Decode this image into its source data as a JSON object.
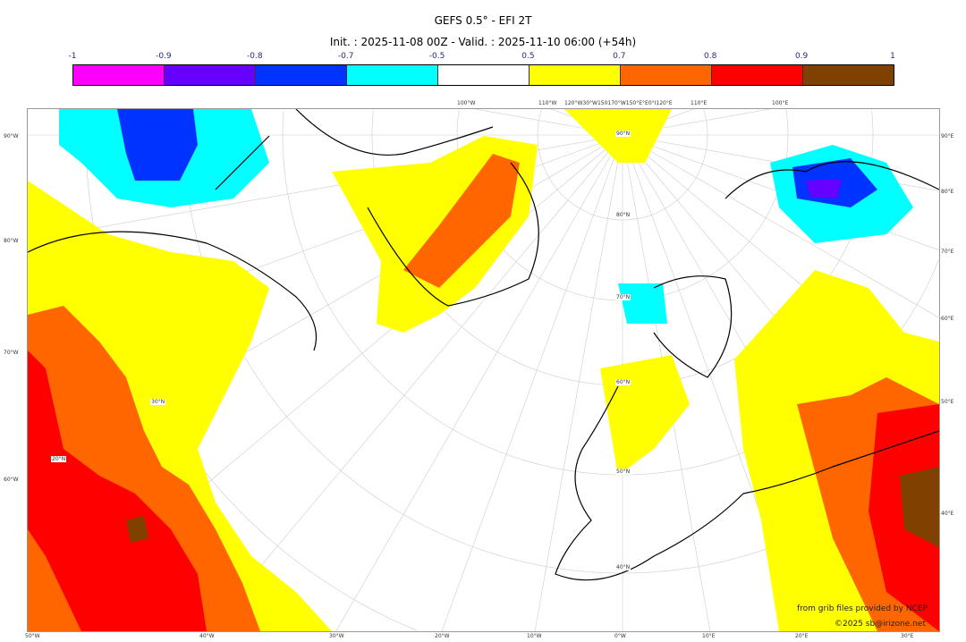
{
  "title": "GEFS 0.5° - EFI 2T",
  "subtitle": "Init. : 2025-11-08 00Z - Valid. : 2025-11-10 06:00 (+54h)",
  "colorbar": {
    "ticks": [
      "-1",
      "-0.9",
      "-0.8",
      "-0.7",
      "-0.5",
      "0.5",
      "0.7",
      "0.8",
      "0.9",
      "1"
    ],
    "colors": [
      "#ff00ff",
      "#6600ff",
      "#0033ff",
      "#00ffff",
      "#ffffff",
      "#ffff00",
      "#ff6600",
      "#ff0000",
      "#804000"
    ]
  },
  "axes": {
    "left": [
      "90°W",
      "80°W",
      "70°W",
      "60°W"
    ],
    "right": [
      "90°E",
      "80°E",
      "70°E",
      "60°E",
      "50°E",
      "40°E"
    ],
    "bottom": [
      "50°W",
      "40°W",
      "30°W",
      "20°W",
      "10°W",
      "0°W",
      "10°E",
      "20°E",
      "30°E"
    ],
    "top": [
      "100°W",
      "110°W",
      "120°W30°W150170°W150°E°E0°I120°E",
      "110°E",
      "100°E"
    ],
    "lat_labels": [
      "90°N",
      "80°N",
      "70°N",
      "60°N",
      "50°N",
      "40°N",
      "30°N",
      "20°N"
    ]
  },
  "credits": {
    "line1": "from grib files provided by NCEP",
    "line2": "©2025 sb@irizone.net"
  }
}
